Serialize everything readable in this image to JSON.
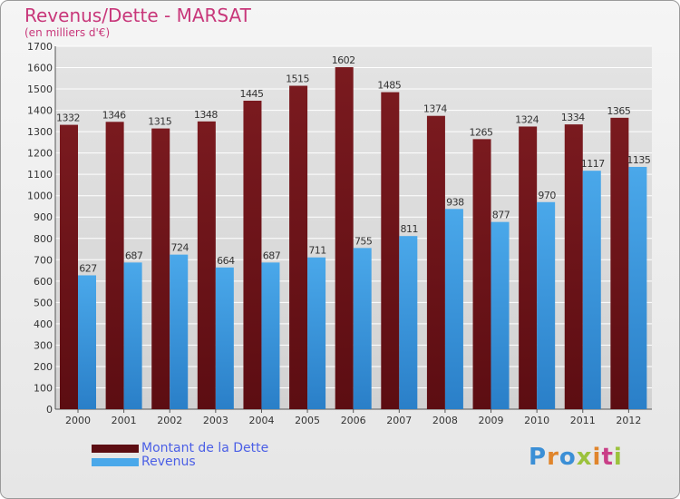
{
  "title": "Revenus/Dette - MARSAT",
  "subtitle": "(en milliers d'€)",
  "logo_text": "Proxiti",
  "colors": {
    "dette": "#7a1a1f",
    "dette_light": "#5c0d12",
    "revenus": "#4aa8ea",
    "revenus_dark": "#2a7fc8",
    "title": "#c8377a",
    "legend_text": "#4b5fe6",
    "grid": "#ffffff",
    "axis_text": "#333333"
  },
  "chart_data": {
    "type": "bar",
    "title": "Revenus/Dette - MARSAT",
    "ylabel": "(en milliers d'€)",
    "xlabel": "",
    "categories": [
      "2000",
      "2001",
      "2002",
      "2003",
      "2004",
      "2005",
      "2006",
      "2007",
      "2008",
      "2009",
      "2010",
      "2011",
      "2012"
    ],
    "series": [
      {
        "name": "Montant de la Dette",
        "values": [
          1332,
          1346,
          1315,
          1348,
          1445,
          1515,
          1602,
          1485,
          1374,
          1265,
          1324,
          1334,
          1365
        ]
      },
      {
        "name": "Revenus",
        "values": [
          627,
          687,
          724,
          664,
          687,
          711,
          755,
          811,
          938,
          877,
          970,
          1117,
          1135
        ]
      }
    ],
    "ylim": [
      0,
      1700
    ],
    "ytick_step": 100,
    "grid": true,
    "legend": "bottom-left"
  }
}
